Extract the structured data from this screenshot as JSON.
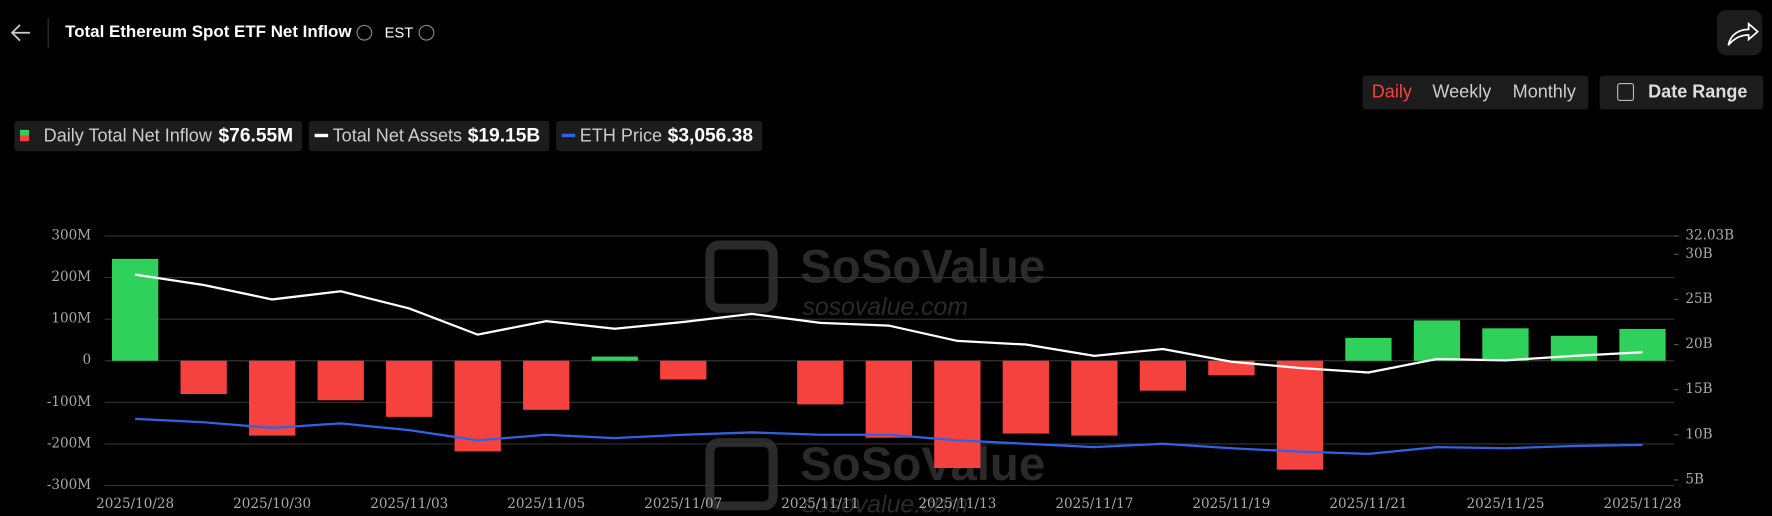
{
  "header": {
    "title": "Total Ethereum Spot ETF Net Inflow",
    "timezone": "EST"
  },
  "controls": {
    "periods": [
      "Daily",
      "Weekly",
      "Monthly"
    ],
    "active": 0,
    "date_range": "Date Range"
  },
  "watermark": {
    "name": "SoSoValue",
    "url": "sosovalue.com"
  },
  "chart_data": {
    "type": "bar-line",
    "categories": [
      "2025/10/28",
      null,
      "2025/10/30",
      null,
      "2025/11/03",
      null,
      "2025/11/05",
      null,
      "2025/11/07",
      null,
      "2025/11/11",
      null,
      "2025/11/13",
      null,
      "2025/11/17",
      null,
      "2025/11/19",
      null,
      "2025/11/21",
      null,
      "2025/11/25",
      null,
      "2025/11/28"
    ],
    "series": [
      {
        "name": "Daily Total Net Inflow",
        "type": "bar",
        "positive_color": "#2fd15a",
        "negative_color": "#f5423f",
        "legend_value": "$76.55M",
        "values": [
          245,
          -80,
          -180,
          -95,
          -135,
          -218,
          -118,
          10,
          -45,
          null,
          -105,
          -185,
          -258,
          -175,
          -180,
          -72,
          -35,
          -262,
          55,
          97,
          78,
          60,
          76.55
        ]
      },
      {
        "name": "Total Net Assets",
        "type": "line",
        "axis": "y2",
        "color": "#ffffff",
        "legend_value": "$19.15B",
        "values": [
          27.75,
          26.6,
          25,
          25.9,
          24,
          21.1,
          22.6,
          21.75,
          22.5,
          23.4,
          22.4,
          22.1,
          20.4,
          20,
          18.75,
          19.5,
          18.1,
          17.4,
          16.9,
          18.4,
          18.25,
          18.75,
          19.15
        ]
      },
      {
        "name": "ETH Price",
        "type": "line",
        "axis": "y3",
        "color": "#2f62e6",
        "legend_value": "$3,056.38",
        "values": [
          3999,
          3876,
          3671,
          3835,
          3589,
          3220,
          3425,
          3302,
          3425,
          3507,
          3425,
          3425,
          3220,
          3097,
          2974,
          3097,
          2933,
          2810,
          2728,
          2974,
          2933,
          3015,
          3056.38
        ]
      }
    ],
    "ylim": [
      -300,
      300
    ],
    "yticks": [
      {
        "value": 300,
        "label": "300M"
      },
      {
        "value": 200,
        "label": "200M"
      },
      {
        "value": 100,
        "label": "100M"
      },
      0,
      {
        "value": -100,
        "label": "-100M"
      },
      {
        "value": -200,
        "label": "-200M"
      },
      {
        "value": -300,
        "label": "-300M"
      }
    ],
    "y2lim": [
      4.38,
      32.03
    ],
    "y2ticks": [
      {
        "value": 32.03,
        "label": "32.03B"
      },
      {
        "value": 30,
        "label": "30B"
      },
      {
        "value": 25,
        "label": "25B"
      },
      {
        "value": 20,
        "label": "20B"
      },
      {
        "value": 15,
        "label": "15B"
      },
      {
        "value": 10,
        "label": "10B"
      },
      {
        "value": 5,
        "label": "5B"
      }
    ],
    "y3lim": [
      1580,
      10640
    ],
    "grid": true
  }
}
